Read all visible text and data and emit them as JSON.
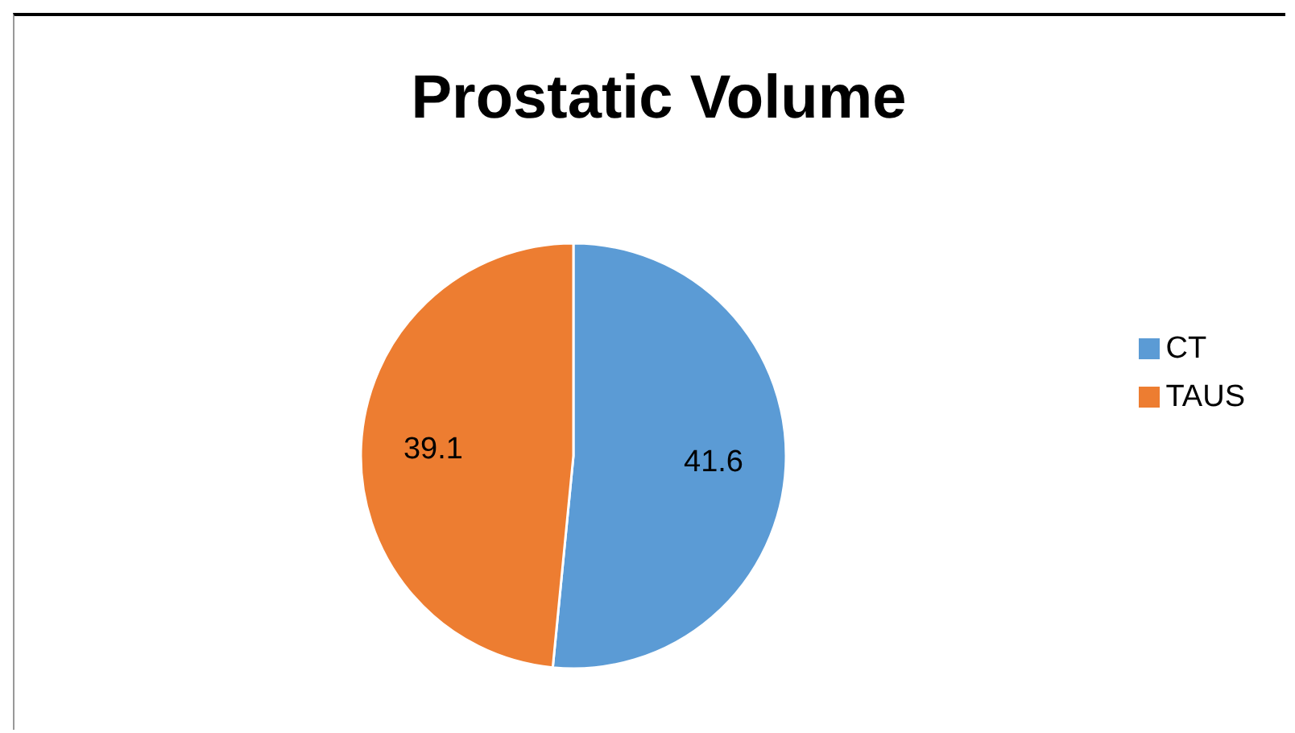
{
  "chart_data": {
    "type": "pie",
    "title": "Prostatic Volume",
    "categories": [
      "CT",
      "TAUS"
    ],
    "values": [
      41.6,
      39.1
    ],
    "colors": [
      "#5b9bd5",
      "#ed7d31"
    ],
    "data_labels": true,
    "legend": "right"
  }
}
